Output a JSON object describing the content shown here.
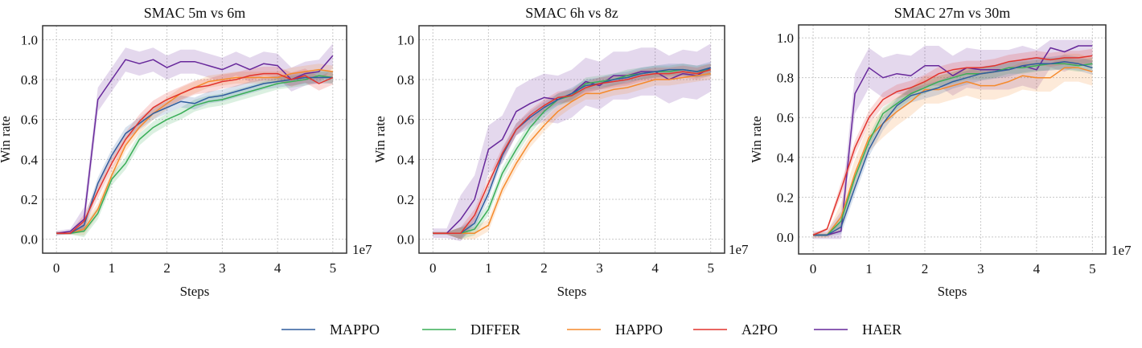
{
  "legend": [
    {
      "name": "MAPPO",
      "color": "#2f5d9e"
    },
    {
      "name": "DIFFER",
      "color": "#3aae57"
    },
    {
      "name": "HAPPO",
      "color": "#f58a2c"
    },
    {
      "name": "A2PO",
      "color": "#e2342d"
    },
    {
      "name": "HAER",
      "color": "#67289b"
    }
  ],
  "chart_data": [
    {
      "type": "line",
      "title": "SMAC 5m vs 6m",
      "xlabel": "Steps",
      "ylabel": "Win rate",
      "x_offset_text": "1e7",
      "xlim": [
        -0.25,
        5.25
      ],
      "ylim": [
        -0.07,
        1.07
      ],
      "xticks": [
        "0",
        "1",
        "2",
        "3",
        "4",
        "5"
      ],
      "yticks": [
        "0.0",
        "0.2",
        "0.4",
        "0.6",
        "0.8",
        "1.0"
      ],
      "grid": true,
      "x": [
        0,
        0.25,
        0.5,
        0.75,
        1,
        1.25,
        1.5,
        1.75,
        2,
        2.25,
        2.5,
        2.75,
        3,
        3.25,
        3.5,
        3.75,
        4,
        4.25,
        4.5,
        4.75,
        5
      ],
      "series": [
        {
          "name": "MAPPO",
          "std": 0.03,
          "values": [
            0.03,
            0.03,
            0.07,
            0.28,
            0.42,
            0.53,
            0.58,
            0.63,
            0.66,
            0.69,
            0.68,
            0.71,
            0.72,
            0.74,
            0.76,
            0.78,
            0.79,
            0.8,
            0.81,
            0.81,
            0.81
          ]
        },
        {
          "name": "DIFFER",
          "std": 0.03,
          "values": [
            0.03,
            0.03,
            0.04,
            0.13,
            0.3,
            0.38,
            0.5,
            0.56,
            0.6,
            0.63,
            0.67,
            0.69,
            0.7,
            0.72,
            0.74,
            0.76,
            0.78,
            0.79,
            0.8,
            0.82,
            0.81
          ]
        },
        {
          "name": "HAPPO",
          "std": 0.03,
          "values": [
            0.03,
            0.03,
            0.05,
            0.15,
            0.32,
            0.47,
            0.56,
            0.63,
            0.68,
            0.73,
            0.76,
            0.79,
            0.8,
            0.81,
            0.81,
            0.81,
            0.81,
            0.83,
            0.84,
            0.85,
            0.84
          ]
        },
        {
          "name": "A2PO",
          "std": 0.035,
          "values": [
            0.03,
            0.03,
            0.09,
            0.24,
            0.38,
            0.5,
            0.59,
            0.66,
            0.7,
            0.73,
            0.76,
            0.77,
            0.79,
            0.8,
            0.82,
            0.83,
            0.83,
            0.8,
            0.82,
            0.78,
            0.81
          ]
        },
        {
          "name": "HAER",
          "std": 0.06,
          "values": [
            0.03,
            0.04,
            0.1,
            0.7,
            0.8,
            0.9,
            0.88,
            0.9,
            0.86,
            0.89,
            0.89,
            0.87,
            0.85,
            0.88,
            0.85,
            0.88,
            0.87,
            0.8,
            0.83,
            0.84,
            0.92
          ]
        }
      ]
    },
    {
      "type": "line",
      "title": "SMAC 6h vs 8z",
      "xlabel": "Steps",
      "ylabel": "Win rate",
      "x_offset_text": "1e7",
      "xlim": [
        -0.25,
        5.25
      ],
      "ylim": [
        -0.07,
        1.07
      ],
      "xticks": [
        "0",
        "1",
        "2",
        "3",
        "4",
        "5"
      ],
      "yticks": [
        "0.0",
        "0.2",
        "0.4",
        "0.6",
        "0.8",
        "1.0"
      ],
      "grid": true,
      "x": [
        0,
        0.25,
        0.5,
        0.75,
        1,
        1.25,
        1.5,
        1.75,
        2,
        2.25,
        2.5,
        2.75,
        3,
        3.25,
        3.5,
        3.75,
        4,
        4.25,
        4.5,
        4.75,
        5
      ],
      "series": [
        {
          "name": "MAPPO",
          "std": 0.03,
          "values": [
            0.03,
            0.03,
            0.03,
            0.08,
            0.23,
            0.42,
            0.55,
            0.61,
            0.66,
            0.7,
            0.73,
            0.77,
            0.78,
            0.8,
            0.81,
            0.83,
            0.84,
            0.85,
            0.85,
            0.84,
            0.86
          ]
        },
        {
          "name": "DIFFER",
          "std": 0.03,
          "values": [
            0.03,
            0.03,
            0.03,
            0.05,
            0.15,
            0.33,
            0.45,
            0.56,
            0.64,
            0.7,
            0.72,
            0.78,
            0.79,
            0.8,
            0.82,
            0.83,
            0.84,
            0.84,
            0.85,
            0.84,
            0.85
          ]
        },
        {
          "name": "HAPPO",
          "std": 0.03,
          "values": [
            0.03,
            0.03,
            0.03,
            0.03,
            0.07,
            0.25,
            0.38,
            0.49,
            0.57,
            0.64,
            0.69,
            0.73,
            0.73,
            0.75,
            0.76,
            0.78,
            0.8,
            0.8,
            0.81,
            0.82,
            0.83
          ]
        },
        {
          "name": "A2PO",
          "std": 0.03,
          "values": [
            0.03,
            0.03,
            0.03,
            0.12,
            0.28,
            0.43,
            0.55,
            0.62,
            0.67,
            0.71,
            0.72,
            0.76,
            0.78,
            0.79,
            0.8,
            0.82,
            0.83,
            0.83,
            0.84,
            0.83,
            0.85
          ]
        },
        {
          "name": "HAER",
          "std": 0.12,
          "values": [
            0.03,
            0.03,
            0.1,
            0.2,
            0.45,
            0.5,
            0.64,
            0.68,
            0.71,
            0.7,
            0.73,
            0.79,
            0.77,
            0.82,
            0.82,
            0.84,
            0.84,
            0.8,
            0.83,
            0.82,
            0.86
          ]
        }
      ]
    },
    {
      "type": "line",
      "title": "SMAC 27m vs 30m",
      "xlabel": "Steps",
      "ylabel": "Win rate",
      "x_offset_text": "1e7",
      "xlim": [
        -0.26,
        5.24
      ],
      "ylim": [
        -0.085,
        1.065
      ],
      "xticks": [
        "0",
        "1",
        "2",
        "3",
        "4",
        "5"
      ],
      "yticks": [
        "0.0",
        "0.2",
        "0.4",
        "0.6",
        "0.8",
        "1.0"
      ],
      "grid": true,
      "x": [
        0,
        0.25,
        0.5,
        0.75,
        1,
        1.25,
        1.5,
        1.75,
        2,
        2.25,
        2.5,
        2.75,
        3,
        3.25,
        3.5,
        3.75,
        4,
        4.25,
        4.5,
        4.75,
        5
      ],
      "series": [
        {
          "name": "MAPPO",
          "std": 0.035,
          "values": [
            0.01,
            0.01,
            0.05,
            0.25,
            0.44,
            0.57,
            0.66,
            0.71,
            0.73,
            0.75,
            0.78,
            0.8,
            0.82,
            0.83,
            0.84,
            0.86,
            0.87,
            0.87,
            0.88,
            0.87,
            0.85
          ]
        },
        {
          "name": "DIFFER",
          "std": 0.03,
          "values": [
            0.01,
            0.01,
            0.08,
            0.3,
            0.48,
            0.62,
            0.67,
            0.72,
            0.75,
            0.78,
            0.8,
            0.82,
            0.82,
            0.83,
            0.85,
            0.85,
            0.86,
            0.87,
            0.87,
            0.86,
            0.87
          ]
        },
        {
          "name": "HAPPO",
          "std": 0.07,
          "values": [
            0.01,
            0.01,
            0.1,
            0.32,
            0.5,
            0.57,
            0.63,
            0.68,
            0.74,
            0.74,
            0.76,
            0.78,
            0.76,
            0.76,
            0.78,
            0.81,
            0.8,
            0.8,
            0.85,
            0.85,
            0.83
          ]
        },
        {
          "name": "A2PO",
          "std": 0.035,
          "values": [
            0.01,
            0.04,
            0.24,
            0.45,
            0.6,
            0.69,
            0.73,
            0.75,
            0.78,
            0.82,
            0.84,
            0.85,
            0.85,
            0.86,
            0.88,
            0.89,
            0.9,
            0.89,
            0.9,
            0.9,
            0.91
          ]
        },
        {
          "name": "HAER",
          "std": 0.1,
          "values": [
            0.01,
            0.01,
            0.03,
            0.72,
            0.85,
            0.8,
            0.82,
            0.81,
            0.86,
            0.86,
            0.81,
            0.85,
            0.84,
            0.84,
            0.84,
            0.86,
            0.84,
            0.95,
            0.93,
            0.96,
            0.96
          ]
        }
      ]
    }
  ]
}
